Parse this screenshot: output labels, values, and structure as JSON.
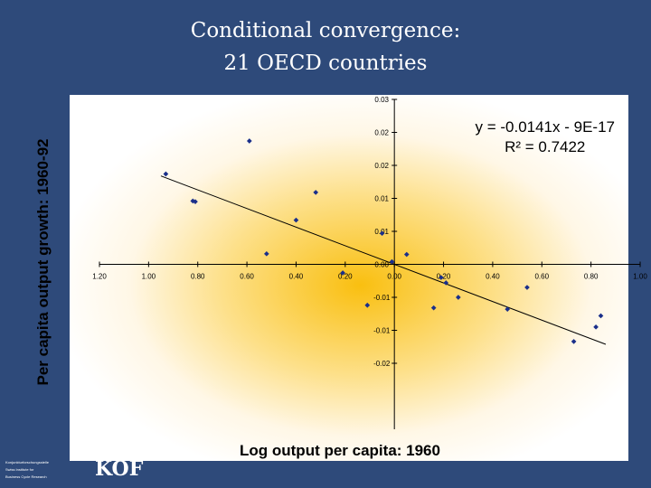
{
  "slide": {
    "title_line1": "Conditional convergence:",
    "title_line2": "21 OECD countries",
    "footer_org_lines": [
      "Konjunkturforschungsstelle",
      "Swiss Institute for",
      "Business Cycle Research"
    ],
    "logo_text": "KOF"
  },
  "chart_data": {
    "type": "scatter",
    "xlabel": "Log output per capita: 1960",
    "ylabel": "Per capita output growth: 1960-92",
    "x_tick_labels": [
      "1.20",
      "1.00",
      "0.80",
      "0.60",
      "0.40",
      "0.20",
      "0.00",
      "0.20",
      "0.40",
      "0.60",
      "0.80",
      "1.00"
    ],
    "y_tick_labels": [
      "0.03",
      "0.02",
      "0.02",
      "0.01",
      "0.01",
      "0.00",
      "-0.01",
      "-0.01",
      "-0.02"
    ],
    "xlim": [
      -1.2,
      1.0
    ],
    "ylim": [
      -0.025,
      0.025
    ],
    "points": [
      {
        "x": -0.93,
        "y": 0.0137
      },
      {
        "x": -0.81,
        "y": 0.0095
      },
      {
        "x": -0.59,
        "y": 0.0187
      },
      {
        "x": -0.52,
        "y": 0.0016
      },
      {
        "x": -0.4,
        "y": 0.0067
      },
      {
        "x": -0.32,
        "y": 0.0109
      },
      {
        "x": -0.21,
        "y": -0.0013
      },
      {
        "x": -0.11,
        "y": -0.0062
      },
      {
        "x": -0.05,
        "y": 0.0047
      },
      {
        "x": -0.01,
        "y": 0.0004
      },
      {
        "x": 0.05,
        "y": 0.0015
      },
      {
        "x": 0.16,
        "y": -0.0066
      },
      {
        "x": 0.19,
        "y": -0.002
      },
      {
        "x": 0.21,
        "y": -0.0028
      },
      {
        "x": 0.26,
        "y": -0.005
      },
      {
        "x": 0.46,
        "y": -0.0068
      },
      {
        "x": 0.54,
        "y": -0.0035
      },
      {
        "x": 0.73,
        "y": -0.0117
      },
      {
        "x": 0.82,
        "y": -0.0095
      },
      {
        "x": 0.84,
        "y": -0.0078
      },
      {
        "x": -0.82,
        "y": 0.0096
      }
    ],
    "trendline": {
      "slope": -0.0141,
      "intercept": 0
    },
    "equation": "y = -0.0141x - 9E-17",
    "r2_text": "R² = 0.7422"
  }
}
